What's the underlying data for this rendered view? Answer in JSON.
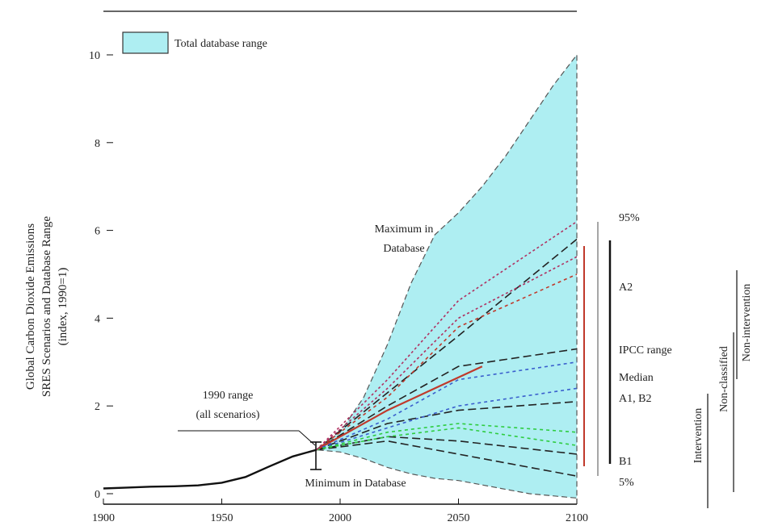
{
  "chart_data": {
    "type": "area",
    "ylabel_lines": [
      "Global Carbon Dioxide Emissions",
      "SRES Scenarios and Database Range",
      "(index, 1990=1)"
    ],
    "xlim": [
      1900,
      2100
    ],
    "ylim": [
      0,
      10
    ],
    "x_tick_labels": [
      "1900",
      "1950",
      "2000",
      "2050",
      "2100"
    ],
    "y_tick_labels": [
      "0",
      "2",
      "4",
      "6",
      "8",
      "10"
    ],
    "x_ticks": [
      1900,
      1950,
      2000,
      2050,
      2100
    ],
    "y_ticks": [
      0,
      2,
      4,
      6,
      8,
      10
    ],
    "legend": {
      "label": "Total database range",
      "position": "top-left",
      "color": "#aeeef2"
    },
    "range_band": {
      "x": [
        1990,
        2000,
        2010,
        2020,
        2030,
        2040,
        2050,
        2060,
        2070,
        2080,
        2090,
        2100
      ],
      "upper": [
        1.0,
        1.4,
        2.2,
        3.4,
        4.8,
        5.9,
        6.4,
        7.0,
        7.7,
        8.5,
        9.3,
        10.0
      ],
      "lower": [
        1.0,
        0.95,
        0.8,
        0.6,
        0.45,
        0.35,
        0.3,
        0.2,
        0.1,
        0.0,
        -0.05,
        -0.1
      ]
    },
    "historical": {
      "x": [
        1900,
        1910,
        1920,
        1930,
        1940,
        1950,
        1960,
        1970,
        1980,
        1990
      ],
      "y": [
        0.12,
        0.14,
        0.16,
        0.17,
        0.19,
        0.25,
        0.38,
        0.62,
        0.85,
        1.0
      ]
    },
    "series_lines": [
      {
        "x": [
          1990,
          2020,
          2050,
          2100
        ],
        "y": [
          1.0,
          2.3,
          3.6,
          5.8
        ],
        "color": "#222222",
        "dash": "10 5"
      },
      {
        "x": [
          1990,
          2020,
          2050,
          2100
        ],
        "y": [
          1.0,
          2.0,
          2.9,
          3.3
        ],
        "color": "#222222",
        "dash": "10 5"
      },
      {
        "x": [
          1990,
          2020,
          2050,
          2100
        ],
        "y": [
          1.0,
          1.6,
          1.9,
          2.1
        ],
        "color": "#222222",
        "dash": "10 5"
      },
      {
        "x": [
          1990,
          2020,
          2050,
          2100
        ],
        "y": [
          1.0,
          1.3,
          1.2,
          0.9
        ],
        "color": "#222222",
        "dash": "10 5"
      },
      {
        "x": [
          1990,
          2020,
          2050,
          2100
        ],
        "y": [
          1.0,
          1.2,
          0.9,
          0.4
        ],
        "color": "#222222",
        "dash": "10 5"
      },
      {
        "x": [
          1990,
          2020,
          2040,
          2060
        ],
        "y": [
          1.0,
          1.9,
          2.4,
          2.9
        ],
        "color": "#c0392b",
        "dash": ""
      },
      {
        "x": [
          1990,
          2020,
          2050,
          2100
        ],
        "y": [
          1.0,
          2.2,
          3.8,
          5.0
        ],
        "color": "#c0392b",
        "dash": "4 4"
      },
      {
        "x": [
          1990,
          2020,
          2050,
          2100
        ],
        "y": [
          1.0,
          1.7,
          2.6,
          3.0
        ],
        "color": "#3a5fcd",
        "dash": "4 4"
      },
      {
        "x": [
          1990,
          2020,
          2050,
          2100
        ],
        "y": [
          1.0,
          1.5,
          2.0,
          2.4
        ],
        "color": "#3a5fcd",
        "dash": "4 4"
      },
      {
        "x": [
          1990,
          2020,
          2050,
          2100
        ],
        "y": [
          1.0,
          1.3,
          1.5,
          1.1
        ],
        "color": "#2ecc40",
        "dash": "4 4"
      },
      {
        "x": [
          1990,
          2020,
          2050,
          2100
        ],
        "y": [
          1.0,
          1.4,
          1.6,
          1.4
        ],
        "color": "#2ecc40",
        "dash": "4 4"
      },
      {
        "x": [
          1990,
          2020,
          2050,
          2100
        ],
        "y": [
          1.0,
          2.6,
          4.4,
          6.2
        ],
        "color": "#b03060",
        "dash": "3 3"
      },
      {
        "x": [
          1990,
          2020,
          2050,
          2100
        ],
        "y": [
          1.0,
          2.4,
          4.0,
          5.4
        ],
        "color": "#b03060",
        "dash": "3 3"
      }
    ],
    "annotations": {
      "max_db": [
        "Maximum in",
        "Database"
      ],
      "min_db": "Minimum in Database",
      "range_1990": [
        "1990 range",
        "(all scenarios)"
      ]
    },
    "right_labels": {
      "p95": "95%",
      "a2": "A2",
      "range": "IPCC range",
      "median": "Median",
      "a1b2": "A1, B2",
      "b1": "B1",
      "p5": "5%"
    },
    "right_vertical": {
      "v1": "Intervention",
      "v2": "Non-classified",
      "v3": "Non-intervention"
    }
  }
}
